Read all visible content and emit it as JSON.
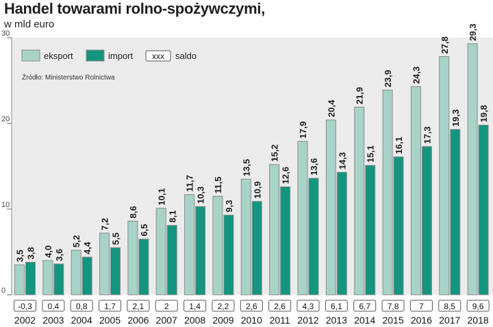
{
  "header": {
    "title": "Handel towarami rolno-spożywczymi,",
    "subtitle": "w mld euro"
  },
  "chart_data": {
    "type": "bar",
    "title": "Handel towarami rolno-spożywczymi,",
    "subtitle": "w mld euro",
    "categories": [
      "2002",
      "2003",
      "2004",
      "2005",
      "2006",
      "2007",
      "2008",
      "2009",
      "2010",
      "2011",
      "2012",
      "2013",
      "2014",
      "2015",
      "2016",
      "2017",
      "2018"
    ],
    "series": [
      {
        "name": "eksport",
        "color": "#a8d3c8",
        "values": [
          3.5,
          4.0,
          5.2,
          7.2,
          8.6,
          10.1,
          11.7,
          11.5,
          13.5,
          15.2,
          17.9,
          20.4,
          21.9,
          23.9,
          24.3,
          27.8,
          29.3
        ],
        "labels": [
          "3,5",
          "4,0",
          "5,2",
          "7,2",
          "8,6",
          "10,1",
          "11,7",
          "11,5",
          "13,5",
          "15,2",
          "17,9",
          "20,4",
          "21,9",
          "23,9",
          "24,3",
          "27,8",
          "29,3"
        ]
      },
      {
        "name": "import",
        "color": "#14957f",
        "values": [
          3.8,
          3.6,
          4.4,
          5.5,
          6.5,
          8.1,
          10.3,
          9.3,
          10.9,
          12.6,
          13.6,
          14.3,
          15.1,
          16.1,
          17.3,
          19.3,
          19.8
        ],
        "labels": [
          "3,8",
          "3,6",
          "4,4",
          "5,5",
          "6,5",
          "8,1",
          "10,3",
          "9,3",
          "10,9",
          "12,6",
          "13,6",
          "14,3",
          "15,1",
          "16,1",
          "17,3",
          "19,3",
          "19,8"
        ]
      }
    ],
    "saldo": {
      "name": "saldo",
      "legend_sample": "xxx",
      "values": [
        -0.3,
        0.4,
        0.8,
        1.7,
        2.1,
        2,
        1.4,
        2.2,
        2.6,
        2.6,
        4.3,
        6.1,
        6.7,
        7.8,
        7,
        8.5,
        9.6
      ],
      "labels": [
        "-0,3",
        "0,4",
        "0,8",
        "1,7",
        "2,1",
        "2",
        "1,4",
        "2,2",
        "2,6",
        "2,6",
        "4,3",
        "6,1",
        "6,7",
        "7,8",
        "7",
        "8,5",
        "9,6"
      ]
    },
    "yticks": [
      "0",
      "10",
      "20",
      "30"
    ],
    "ylim": [
      0,
      30
    ],
    "grid": false,
    "legend_position": "top-left",
    "source": "Źródło: Ministerstwo Rolnictwa",
    "colors": {
      "panel": "#ececec",
      "border": "#7a7a7a"
    }
  }
}
